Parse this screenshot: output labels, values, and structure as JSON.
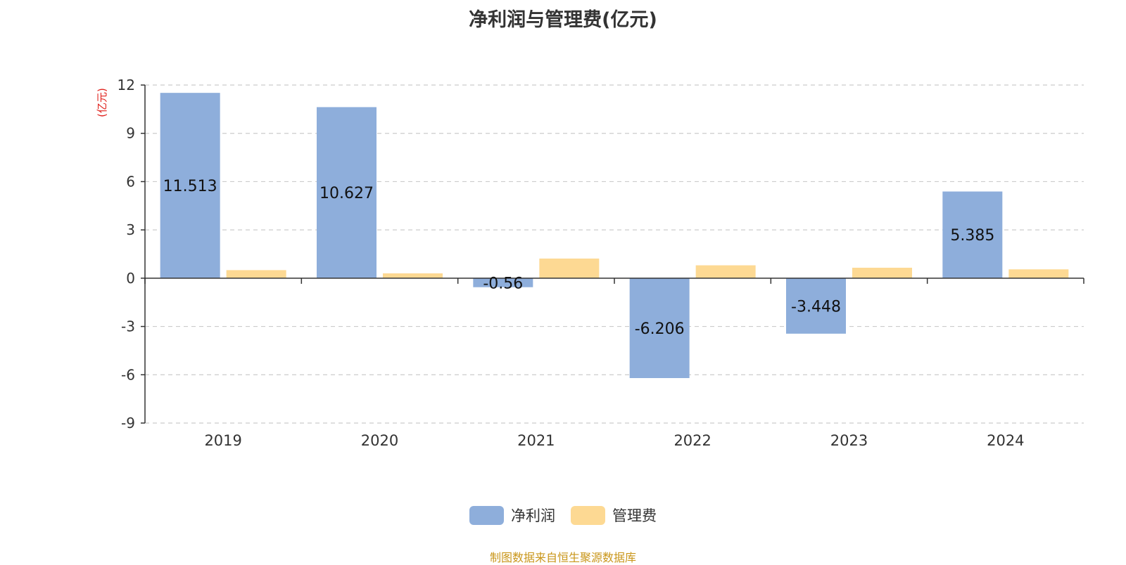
{
  "chart_data": {
    "type": "bar",
    "title": "净利润与管理费(亿元)",
    "ylabel": "(亿元)",
    "categories": [
      "2019",
      "2020",
      "2021",
      "2022",
      "2023",
      "2024"
    ],
    "series": [
      {
        "name": "净利润",
        "values": [
          11.513,
          10.627,
          -0.56,
          -6.206,
          -3.448,
          5.385
        ],
        "color": "#8eaedb",
        "data_labels": [
          "11.513",
          "10.627",
          "-0.56",
          "-6.206",
          "-3.448",
          "5.385"
        ]
      },
      {
        "name": "管理费",
        "values": [
          0.5,
          0.3,
          1.22,
          0.8,
          0.65,
          0.55
        ],
        "color": "#fdd993"
      }
    ],
    "ylim": [
      -9,
      12
    ],
    "yticks": [
      12,
      9,
      6,
      3,
      0,
      -3,
      -6,
      -9
    ],
    "grid": true,
    "legend_position": "bottom-center"
  },
  "colors": {
    "ylabel": "#e0201b",
    "source": "#c9961a",
    "axis": "#333333",
    "grid": "#cccccc"
  },
  "source_text": "制图数据来自恒生聚源数据库"
}
